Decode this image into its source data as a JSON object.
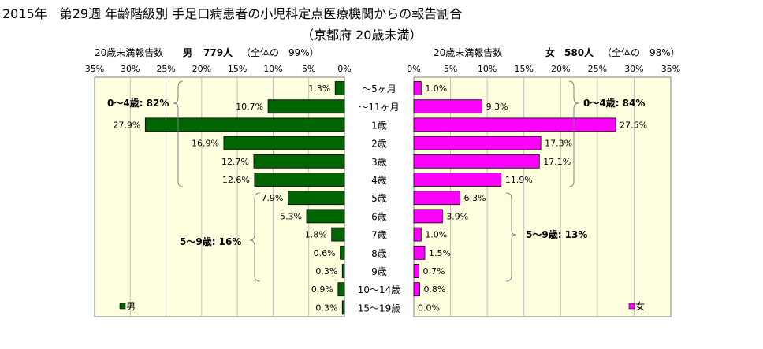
{
  "title_line1": "2015年　第29週 年齢階級別 手足口病患者の小児科定点医療機関からの報告割合",
  "title_line2": "（京都府 20歳未満）",
  "male_header": {
    "label": "20歳未満報告数",
    "sex": "男",
    "count": "779人",
    "share": "（全体の　99%）"
  },
  "female_header": {
    "label": "20歳未満報告数",
    "sex": "女",
    "count": "580人",
    "share": "（全体の　98%）"
  },
  "legend": {
    "male": "男",
    "female": "女"
  },
  "annotations": {
    "male_0_4": "0～4歳: 82%",
    "male_5_9": "5～9歳: 16%",
    "female_0_4": "0～4歳: 84%",
    "female_5_9": "5～9歳: 13%"
  },
  "colors": {
    "male": "#006400",
    "female": "#ff00ff",
    "plot_bg": "#ffffe0"
  },
  "chart_data": {
    "type": "bar",
    "orientation": "horizontal",
    "layout": "population-pyramid",
    "categories": [
      "～5ヶ月",
      "～11ヶ月",
      "1歳",
      "2歳",
      "3歳",
      "4歳",
      "5歳",
      "6歳",
      "7歳",
      "8歳",
      "9歳",
      "10～14歳",
      "15～19歳"
    ],
    "tick_labels": [
      "35%",
      "30%",
      "25%",
      "20%",
      "15%",
      "10%",
      "5%",
      "0%"
    ],
    "female_tick_labels": [
      "0%",
      "5%",
      "10%",
      "15%",
      "20%",
      "25%",
      "30%",
      "35%"
    ],
    "xlim": [
      0,
      35
    ],
    "series": [
      {
        "name": "男",
        "values": [
          1.3,
          10.7,
          27.9,
          16.9,
          12.7,
          12.6,
          7.9,
          5.3,
          1.8,
          0.6,
          0.3,
          0.9,
          0.3
        ],
        "labels": [
          "1.3%",
          "10.7%",
          "27.9%",
          "16.9%",
          "12.7%",
          "12.6%",
          "7.9%",
          "5.3%",
          "1.8%",
          "0.6%",
          "0.3%",
          "0.9%",
          "0.3%"
        ]
      },
      {
        "name": "女",
        "values": [
          1.0,
          9.3,
          27.5,
          17.3,
          17.1,
          11.9,
          6.3,
          3.9,
          1.0,
          1.5,
          0.7,
          0.8,
          0.0
        ],
        "labels": [
          "1.0%",
          "9.3%",
          "27.5%",
          "17.3%",
          "17.1%",
          "11.9%",
          "6.3%",
          "3.9%",
          "1.0%",
          "1.5%",
          "0.7%",
          "0.8%",
          "0.0%"
        ]
      }
    ],
    "grid": true,
    "legend_position": "bottom-left / bottom-right"
  }
}
